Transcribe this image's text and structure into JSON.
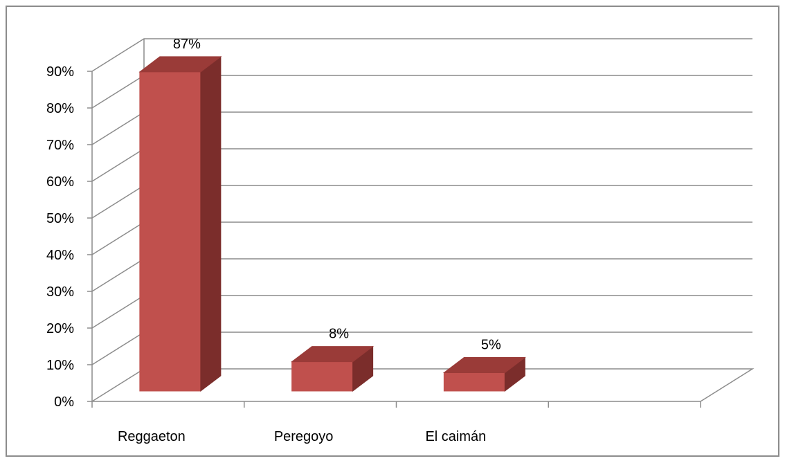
{
  "chart_data": {
    "type": "bar",
    "three_d": true,
    "categories": [
      "Reggaeton",
      "Peregoyo",
      "El caimán"
    ],
    "values": [
      87,
      8,
      5
    ],
    "data_labels": [
      "87%",
      "8%",
      "5%"
    ],
    "ylim": [
      0,
      90
    ],
    "y_ticks": [
      0,
      10,
      20,
      30,
      40,
      50,
      60,
      70,
      80,
      90
    ],
    "y_tick_labels": [
      "0%",
      "10%",
      "20%",
      "30%",
      "40%",
      "50%",
      "60%",
      "70%",
      "80%",
      "90%"
    ],
    "category_slots": 4,
    "grid": true,
    "legend": "none",
    "colors": {
      "bar_front": "#c0504d",
      "bar_side": "#7b2d2b",
      "bar_top": "#9a3b38",
      "gridline": "#8c8c8c",
      "frame": "#8c8c8c"
    }
  }
}
